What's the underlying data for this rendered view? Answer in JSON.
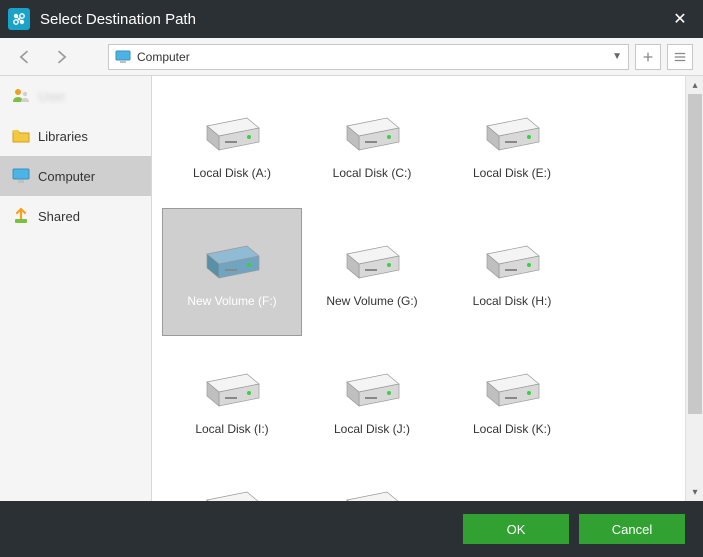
{
  "window": {
    "title": "Select Destination Path"
  },
  "path": {
    "label": "Computer"
  },
  "sidebar": {
    "items": [
      {
        "key": "user",
        "label": "User"
      },
      {
        "key": "libraries",
        "label": "Libraries"
      },
      {
        "key": "computer",
        "label": "Computer",
        "selected": true
      },
      {
        "key": "shared",
        "label": "Shared"
      }
    ]
  },
  "drives": [
    {
      "label": "Local Disk (A:)",
      "selected": false,
      "color": "gray"
    },
    {
      "label": "Local Disk (C:)",
      "selected": false,
      "color": "gray"
    },
    {
      "label": "Local Disk (E:)",
      "selected": false,
      "color": "gray"
    },
    {
      "label": "New Volume (F:)",
      "selected": true,
      "color": "blue"
    },
    {
      "label": "New Volume (G:)",
      "selected": false,
      "color": "gray"
    },
    {
      "label": "Local Disk (H:)",
      "selected": false,
      "color": "gray"
    },
    {
      "label": "Local Disk (I:)",
      "selected": false,
      "color": "gray"
    },
    {
      "label": "Local Disk (J:)",
      "selected": false,
      "color": "gray"
    },
    {
      "label": "Local Disk (K:)",
      "selected": false,
      "color": "gray"
    },
    {
      "label": "",
      "selected": false,
      "color": "gray",
      "partial": true
    },
    {
      "label": "",
      "selected": false,
      "color": "gray",
      "partial": true
    }
  ],
  "buttons": {
    "ok": "OK",
    "cancel": "Cancel"
  },
  "colors": {
    "titlebar": "#2b3034",
    "accent_blue": "#1aa3c9",
    "button_green": "#31a231",
    "selected_gray": "#cfcfcf",
    "drive_gray_top": "#f4f4f4",
    "drive_gray_side": "#bfbfbf",
    "drive_blue_top": "#8fbcd4",
    "drive_blue_side": "#5a8fa8",
    "led_green": "#3dd03d"
  }
}
